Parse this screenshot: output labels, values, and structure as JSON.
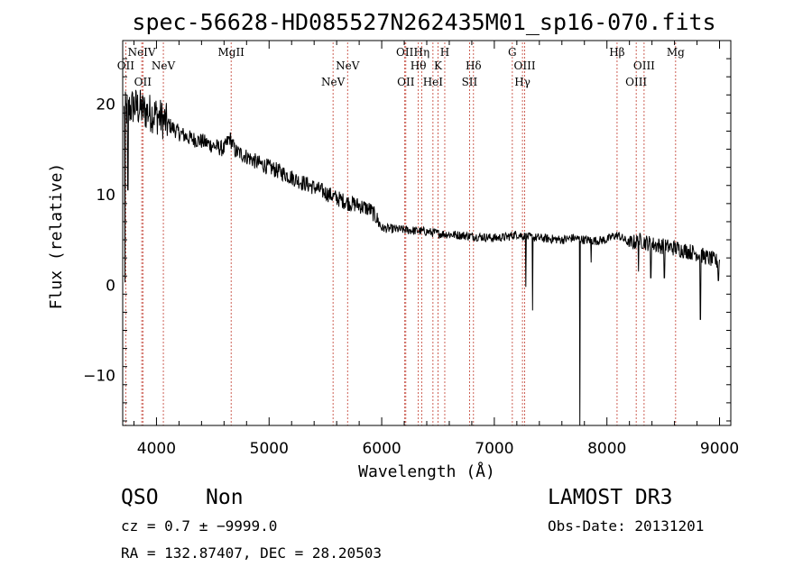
{
  "chart_data": {
    "type": "line",
    "title": "spec-56628-HD085527N262435M01_sp16-070.fits",
    "xlabel": "Wavelength (Å)",
    "ylabel": "Flux (relative)",
    "xlim": [
      3700,
      9100
    ],
    "ylim": [
      -15.5,
      27
    ],
    "x_ticks": [
      4000,
      5000,
      6000,
      7000,
      8000,
      9000
    ],
    "y_ticks": [
      -10,
      0,
      10,
      20
    ],
    "grid": false,
    "line_color": "#000000",
    "marker_color": "#c0392b",
    "continuum": [
      [
        3700,
        19.0
      ],
      [
        3800,
        19.8
      ],
      [
        3900,
        19.2
      ],
      [
        4000,
        18.8
      ],
      [
        4100,
        17.8
      ],
      [
        4200,
        16.8
      ],
      [
        4300,
        16.2
      ],
      [
        4400,
        15.9
      ],
      [
        4500,
        15.4
      ],
      [
        4600,
        15.0
      ],
      [
        4650,
        16.3
      ],
      [
        4700,
        14.8
      ],
      [
        4800,
        14.2
      ],
      [
        4900,
        13.5
      ],
      [
        5000,
        13.0
      ],
      [
        5100,
        12.5
      ],
      [
        5200,
        11.9
      ],
      [
        5300,
        11.3
      ],
      [
        5400,
        10.8
      ],
      [
        5500,
        10.2
      ],
      [
        5600,
        9.6
      ],
      [
        5700,
        9.1
      ],
      [
        5800,
        8.8
      ],
      [
        5900,
        8.3
      ],
      [
        5950,
        7.5
      ],
      [
        6000,
        6.3
      ],
      [
        6100,
        6.2
      ],
      [
        6200,
        6.1
      ],
      [
        6300,
        6.0
      ],
      [
        6400,
        5.9
      ],
      [
        6500,
        5.7
      ],
      [
        6600,
        5.6
      ],
      [
        6700,
        5.5
      ],
      [
        6800,
        5.4
      ],
      [
        6900,
        5.3
      ],
      [
        7000,
        5.2
      ],
      [
        7100,
        5.3
      ],
      [
        7200,
        5.6
      ],
      [
        7300,
        5.3
      ],
      [
        7400,
        5.2
      ],
      [
        7500,
        5.1
      ],
      [
        7600,
        5.0
      ],
      [
        7700,
        5.2
      ],
      [
        7800,
        5.0
      ],
      [
        7900,
        4.9
      ],
      [
        8000,
        5.0
      ],
      [
        8050,
        5.4
      ],
      [
        8100,
        5.5
      ],
      [
        8200,
        4.6
      ],
      [
        8300,
        4.9
      ],
      [
        8400,
        4.5
      ],
      [
        8500,
        4.3
      ],
      [
        8600,
        4.1
      ],
      [
        8700,
        3.8
      ],
      [
        8800,
        3.5
      ],
      [
        8900,
        3.0
      ],
      [
        9000,
        2.5
      ]
    ],
    "absorption_spikes": [
      [
        3720,
        0.3
      ],
      [
        3745,
        10.5
      ],
      [
        7280,
        -0.2
      ],
      [
        7340,
        -2.8
      ],
      [
        7760,
        -15.5
      ],
      [
        7860,
        2.5
      ],
      [
        8280,
        1.5
      ],
      [
        8390,
        0.8
      ],
      [
        8510,
        0.8
      ],
      [
        8830,
        -3.8
      ],
      [
        8990,
        0.5
      ]
    ],
    "lines": [
      {
        "name": "OII",
        "x": 3727,
        "row": 1
      },
      {
        "name": "NeIV",
        "x": 3869,
        "row": 0
      },
      {
        "name": "OII",
        "x": 3879,
        "row": 2
      },
      {
        "name": "NeV",
        "x": 4061,
        "row": 1
      },
      {
        "name": "MgII",
        "x": 4663,
        "row": 0
      },
      {
        "name": "NeV",
        "x": 5568,
        "row": 2
      },
      {
        "name": "NeV",
        "x": 5697,
        "row": 1
      },
      {
        "name": "OII",
        "x": 6205,
        "row": 0
      },
      {
        "name": "OII",
        "x": 6214,
        "row": 2
      },
      {
        "name": "Hθ",
        "x": 6325,
        "row": 1
      },
      {
        "name": "Hη",
        "x": 6355,
        "row": 0
      },
      {
        "name": "HeI",
        "x": 6455,
        "row": 2
      },
      {
        "name": "K",
        "x": 6500,
        "row": 1
      },
      {
        "name": "H",
        "x": 6560,
        "row": 0
      },
      {
        "name": "SII",
        "x": 6780,
        "row": 2
      },
      {
        "name": "Hδ",
        "x": 6815,
        "row": 1
      },
      {
        "name": "G",
        "x": 7160,
        "row": 0
      },
      {
        "name": "Hγ",
        "x": 7250,
        "row": 2
      },
      {
        "name": "OIII",
        "x": 7270,
        "row": 1
      },
      {
        "name": "Hβ",
        "x": 8090,
        "row": 0
      },
      {
        "name": "OIII",
        "x": 8260,
        "row": 2
      },
      {
        "name": "OIII",
        "x": 8330,
        "row": 1
      },
      {
        "name": "Mg",
        "x": 8610,
        "row": 0
      }
    ]
  },
  "info": {
    "class": "QSO",
    "subclass": "Non",
    "survey": "LAMOST DR3",
    "redshift": "cz = 0.7 ± −9999.0",
    "obs_date": "Obs-Date: 20131201",
    "coords": "RA = 132.87407, DEC =  28.20503"
  }
}
